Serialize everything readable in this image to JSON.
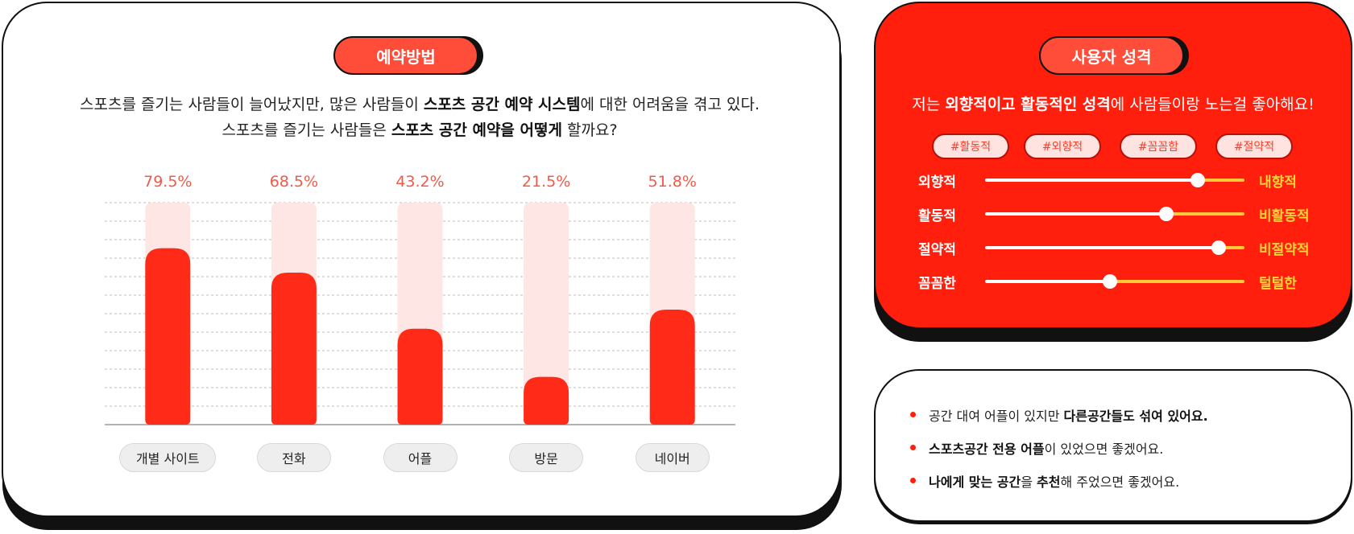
{
  "left": {
    "header": "예약방법",
    "intro_line1": {
      "before": "스포츠를 즐기는 사람들이 늘어났지만, 많은 사람들이 ",
      "bold": "스포츠 공간 예약 시스템",
      "after": "에 대한 어려움을 겪고 있다."
    },
    "intro_line2": {
      "before": "스포츠를 즐기는 사람들은 ",
      "bold": "스포츠 공간 예약을 어떻게",
      "after": " 할까요?"
    }
  },
  "chart_data": {
    "type": "bar",
    "categories": [
      "개별 사이트",
      "전화",
      "어플",
      "방문",
      "네이버"
    ],
    "values": [
      79.5,
      68.5,
      43.2,
      21.5,
      51.8
    ],
    "value_labels": [
      "79.5%",
      "68.5%",
      "43.2%",
      "21.5%",
      "51.8%"
    ],
    "ylim": [
      0,
      100
    ],
    "grid": true,
    "legend": "none",
    "colors": {
      "bar": "#ff2a17",
      "bar_background": "#fde6e3",
      "value_label": "#f15a48",
      "grid": "#bdbdbd"
    }
  },
  "persona": {
    "header": "사용자 성격",
    "quote": {
      "before": "저는 ",
      "bold": "외향적이고 활동적인 성격",
      "after": "에 사람들이랑 노는걸 좋아해요!"
    },
    "tags": [
      "#활동적",
      "#외향적",
      "#꼼꼼함",
      "#절약적"
    ],
    "traits": [
      {
        "left": "외향적",
        "right": "내향적",
        "level": 0.82
      },
      {
        "left": "활동적",
        "right": "비활동적",
        "level": 0.7
      },
      {
        "left": "절약적",
        "right": "비절약적",
        "level": 0.9
      },
      {
        "left": "꼼꼼한",
        "right": "털털한",
        "level": 0.48
      }
    ],
    "colors": {
      "card": "#ff1f0c",
      "track_left": "#ffffff",
      "track_right": "#ffc83a",
      "right_label": "#ffd23a"
    }
  },
  "notes": [
    {
      "before": "공간 대여 어플이 있지만 ",
      "bold": "다른공간들도 섞여 있어요.",
      "after": ""
    },
    {
      "before": "",
      "bold": "스포츠공간 전용 어플",
      "after": "이 있었으면 좋겠어요."
    },
    {
      "before": "",
      "bold": "나에게 맞는 공간",
      "after": "을 추천해 주었으면 좋겠어요.",
      "bold2": "추천"
    }
  ]
}
